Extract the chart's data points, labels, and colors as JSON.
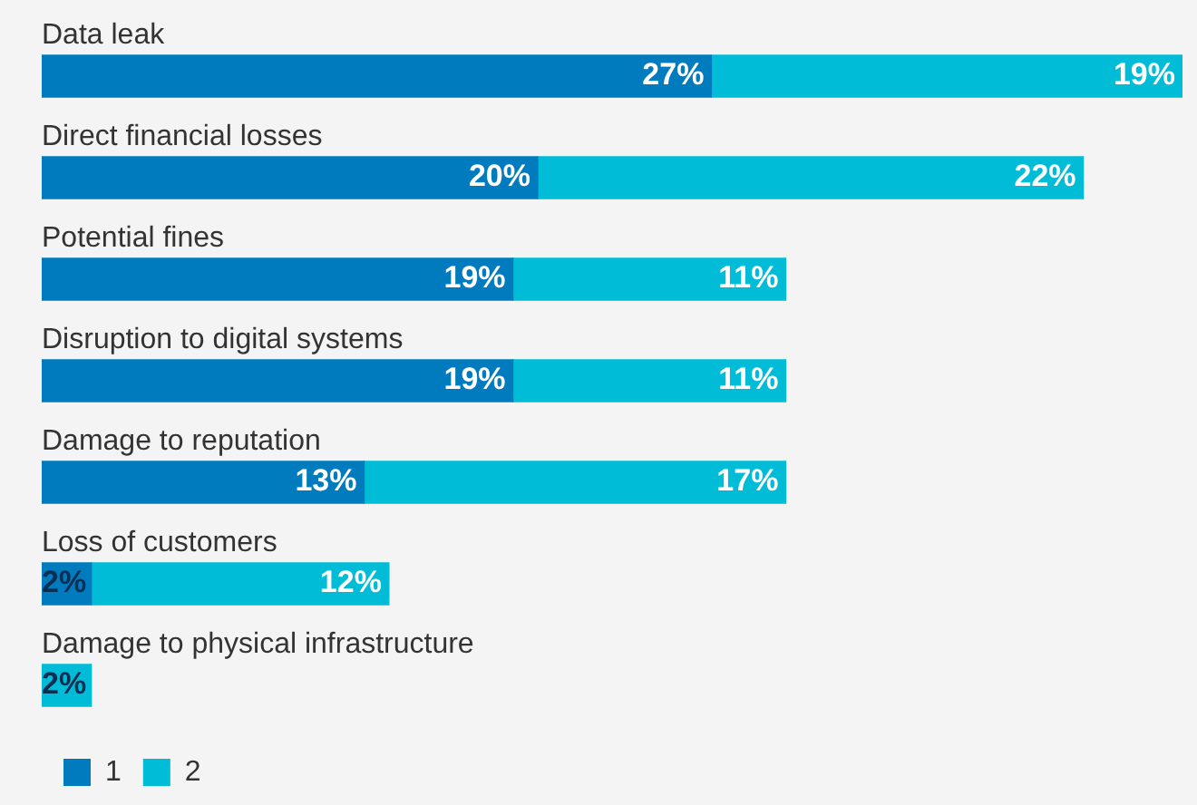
{
  "chart_data": {
    "type": "bar",
    "orientation": "horizontal",
    "stacked": true,
    "legend": "bottom left",
    "xlim": [
      0,
      46
    ],
    "categories": [
      "Data leak",
      "Direct financial losses",
      "Potential fines",
      "Disruption to digital systems",
      "Damage to reputation",
      "Loss of customers",
      "Damage to physical infrastructure"
    ],
    "series": [
      {
        "name": "1",
        "color": "#007bbd",
        "values": [
          27,
          20,
          19,
          19,
          13,
          2,
          null
        ],
        "value_labels": [
          "27%",
          "20%",
          "19%",
          "19%",
          "13%",
          "2%",
          null
        ]
      },
      {
        "name": "2",
        "color": "#00bcd7",
        "values": [
          19,
          22,
          11,
          11,
          17,
          12,
          2
        ],
        "value_labels": [
          "19%",
          "22%",
          "11%",
          "11%",
          "17%",
          "12%",
          "2%"
        ]
      }
    ]
  }
}
